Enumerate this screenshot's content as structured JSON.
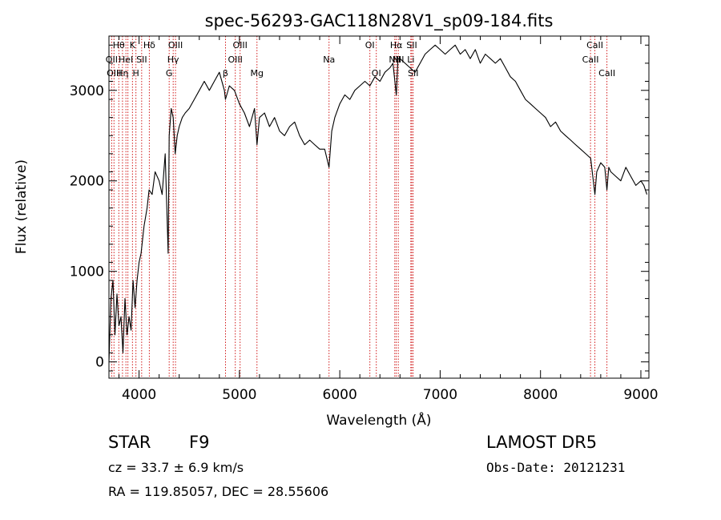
{
  "chart_data": {
    "type": "line",
    "title": "spec-56293-GAC118N28V1_sp09-184.fits",
    "xlabel": "Wavelength (Å)",
    "ylabel": "Flux (relative)",
    "xlim": [
      3700,
      9080
    ],
    "ylim": [
      -180,
      3600
    ],
    "xticks": [
      4000,
      5000,
      6000,
      7000,
      8000,
      9000
    ],
    "yticks": [
      0,
      1000,
      2000,
      3000
    ],
    "grid": false,
    "line_color": "#000000",
    "marker_color": "#cc0000",
    "series": [
      {
        "x": [
          3700,
          3720,
          3740,
          3760,
          3780,
          3800,
          3820,
          3840,
          3860,
          3880,
          3900,
          3920,
          3940,
          3960,
          3980,
          4000,
          4020,
          4050,
          4080,
          4100,
          4130,
          4160,
          4200,
          4230,
          4260,
          4290,
          4300,
          4320,
          4340,
          4360,
          4380,
          4400,
          4430,
          4460,
          4500,
          4550,
          4600,
          4650,
          4700,
          4750,
          4800,
          4850,
          4861,
          4900,
          4950,
          5000,
          5050,
          5100,
          5150,
          5175,
          5200,
          5250,
          5300,
          5350,
          5400,
          5450,
          5500,
          5550,
          5600,
          5650,
          5700,
          5750,
          5800,
          5850,
          5893,
          5920,
          5950,
          6000,
          6050,
          6100,
          6150,
          6200,
          6250,
          6300,
          6350,
          6400,
          6450,
          6500,
          6530,
          6563,
          6580,
          6600,
          6650,
          6700,
          6750,
          6800,
          6850,
          6900,
          6950,
          7000,
          7050,
          7100,
          7150,
          7200,
          7250,
          7300,
          7350,
          7400,
          7450,
          7500,
          7550,
          7600,
          7650,
          7700,
          7750,
          7800,
          7850,
          7900,
          7950,
          8000,
          8050,
          8100,
          8150,
          8200,
          8250,
          8300,
          8350,
          8400,
          8450,
          8500,
          8542,
          8560,
          8600,
          8640,
          8662,
          8680,
          8700,
          8750,
          8800,
          8850,
          8900,
          8950,
          9000,
          9030,
          9060
        ],
        "values": [
          0,
          700,
          900,
          300,
          750,
          400,
          500,
          100,
          700,
          300,
          500,
          350,
          900,
          600,
          900,
          1100,
          1200,
          1500,
          1700,
          1900,
          1850,
          2100,
          2000,
          1850,
          2300,
          1200,
          2500,
          2800,
          2700,
          2300,
          2500,
          2600,
          2700,
          2750,
          2800,
          2900,
          3000,
          3100,
          3000,
          3100,
          3200,
          3000,
          2900,
          3050,
          3000,
          2850,
          2750,
          2600,
          2800,
          2400,
          2700,
          2750,
          2600,
          2700,
          2550,
          2500,
          2600,
          2650,
          2500,
          2400,
          2450,
          2400,
          2350,
          2350,
          2150,
          2550,
          2700,
          2850,
          2950,
          2900,
          3000,
          3050,
          3100,
          3050,
          3150,
          3100,
          3200,
          3250,
          3300,
          2950,
          3350,
          3350,
          3300,
          3250,
          3200,
          3300,
          3400,
          3450,
          3500,
          3450,
          3400,
          3450,
          3500,
          3400,
          3450,
          3350,
          3450,
          3300,
          3400,
          3350,
          3300,
          3350,
          3250,
          3150,
          3100,
          3000,
          2900,
          2850,
          2800,
          2750,
          2700,
          2600,
          2650,
          2550,
          2500,
          2450,
          2400,
          2350,
          2300,
          2250,
          1850,
          2100,
          2200,
          2150,
          1900,
          2150,
          2100,
          2050,
          2000,
          2150,
          2050,
          1950,
          2000,
          1950,
          1850
        ]
      }
    ],
    "lines": [
      {
        "x": 3727,
        "label": "OII",
        "row": 1
      },
      {
        "x": 3750,
        "label": "OIII",
        "row": 2
      },
      {
        "x": 3798,
        "label": "Hθ",
        "row": 0
      },
      {
        "x": 3835,
        "label": "Hη",
        "row": 2
      },
      {
        "x": 3869,
        "label": "HeI",
        "row": 1
      },
      {
        "x": 3889,
        "label": "",
        "row": 0
      },
      {
        "x": 3934,
        "label": "K",
        "row": 0
      },
      {
        "x": 3969,
        "label": "H",
        "row": 2
      },
      {
        "x": 4026,
        "label": "SII",
        "row": 1
      },
      {
        "x": 4102,
        "label": "Hδ",
        "row": 0
      },
      {
        "x": 4300,
        "label": "G",
        "row": 2
      },
      {
        "x": 4340,
        "label": "Hγ",
        "row": 1
      },
      {
        "x": 4363,
        "label": "OIII",
        "row": 0
      },
      {
        "x": 4861,
        "label": "β",
        "row": 2
      },
      {
        "x": 4959,
        "label": "OIII",
        "row": 1
      },
      {
        "x": 5007,
        "label": "OIII",
        "row": 0
      },
      {
        "x": 5175,
        "label": "Mg",
        "row": 2
      },
      {
        "x": 5893,
        "label": "Na",
        "row": 1
      },
      {
        "x": 6300,
        "label": "OI",
        "row": 0
      },
      {
        "x": 6364,
        "label": "OI",
        "row": 2
      },
      {
        "x": 6548,
        "label": "NII",
        "row": 1
      },
      {
        "x": 6563,
        "label": "Hα",
        "row": 0
      },
      {
        "x": 6583,
        "label": "NII",
        "row": 1
      },
      {
        "x": 6708,
        "label": "Li",
        "row": 1
      },
      {
        "x": 6717,
        "label": "SII",
        "row": 0
      },
      {
        "x": 6731,
        "label": "SII",
        "row": 2
      },
      {
        "x": 8498,
        "label": "CaII",
        "row": 1
      },
      {
        "x": 8542,
        "label": "CaII",
        "row": 0
      },
      {
        "x": 8662,
        "label": "CaII",
        "row": 2
      }
    ]
  },
  "info": {
    "object_class": "STAR",
    "subclass": "F9",
    "survey": "LAMOST DR5",
    "redshift": "cz = 33.7 ± 6.9 km/s",
    "obs_date": "Obs-Date: 20121231",
    "coords": "RA = 119.85057, DEC =  28.55606"
  }
}
